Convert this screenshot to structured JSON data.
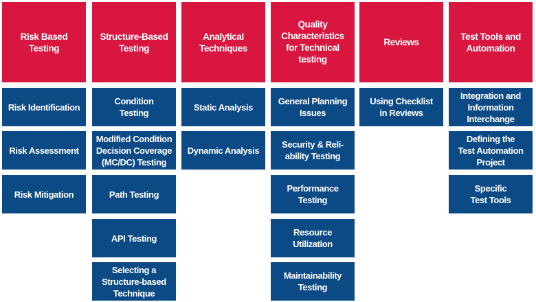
{
  "colors": {
    "header": "#d8163f",
    "item": "#0c4a86",
    "text": "#ffffff"
  },
  "columns": [
    {
      "title": "Risk Based\nTesting",
      "items": [
        "Risk Identification",
        "Risk Assessment",
        "Risk Mitigation"
      ]
    },
    {
      "title": "Structure-Based\nTesting",
      "items": [
        "Condition\nTesting",
        "Modified Condition\nDecision Coverage\n(MC/DC) Testing",
        "Path Testing",
        "API Testing",
        "Selecting a\nStructure-based\nTechnique"
      ]
    },
    {
      "title": "Analytical\nTechniques",
      "items": [
        "Static Analysis",
        "Dynamic Analysis"
      ]
    },
    {
      "title": "Quality\nCharacteristics\nfor Technical\ntesting",
      "items": [
        "General Planning\nIssues",
        "Security & Reli-\nability Testing",
        "Performance\nTesting",
        "Resource\nUtilization",
        "Maintainability\nTesting"
      ]
    },
    {
      "title": "Reviews",
      "items": [
        "Using Checklist\nin Reviews"
      ]
    },
    {
      "title": "Test Tools and\nAutomation",
      "items": [
        "Integration and\nInformation\nInterchange",
        "Defining the\nTest Automation\nProject",
        "Specific\nTest Tools"
      ]
    }
  ]
}
